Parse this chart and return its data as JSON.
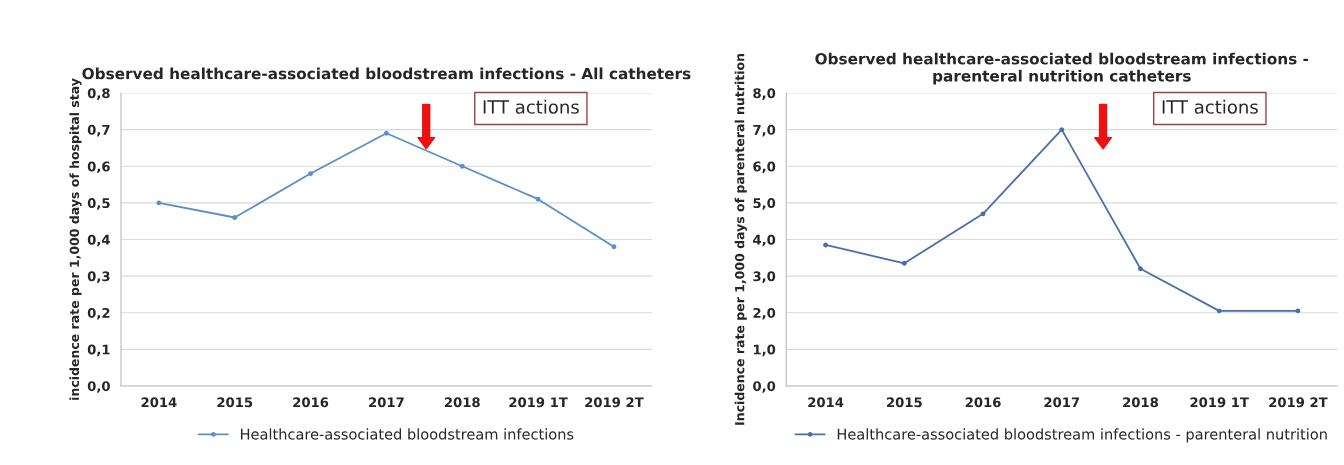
{
  "chart_data": [
    {
      "type": "line",
      "title": "Observed healthcare-associated bloodstream infections - All catheters",
      "ylabel": "incidence rate per 1,000 days of hospital stay",
      "categories": [
        "2014",
        "2015",
        "2016",
        "2017",
        "2018",
        "2019 1T",
        "2019 2T"
      ],
      "series": [
        {
          "name": "Healthcare-associated bloodstream infections",
          "color": "#5b8fc7",
          "values": [
            0.5,
            0.46,
            0.58,
            0.69,
            0.6,
            0.51,
            0.38
          ]
        }
      ],
      "ylim": [
        0,
        0.8
      ],
      "yticks": [
        {
          "value": 0,
          "label": "0,0"
        },
        {
          "value": 0.1,
          "label": "0,1"
        },
        {
          "value": 0.2,
          "label": "0,2"
        },
        {
          "value": 0.3,
          "label": "0,3"
        },
        {
          "value": 0.4,
          "label": "0,4"
        },
        {
          "value": 0.5,
          "label": "0,5"
        },
        {
          "value": 0.6,
          "label": "0,6"
        },
        {
          "value": 0.7,
          "label": "0,7"
        },
        {
          "value": 0.8,
          "label": "0,8"
        }
      ],
      "annotations": [
        "ITT actions"
      ],
      "grid": "y",
      "legend": "bottom",
      "marker": "circle",
      "line_style": "solid"
    },
    {
      "type": "line",
      "title": "Observed healthcare-associated bloodstream infections - parenteral nutrition catheters",
      "ylabel": "Incidence rate per 1,000 days of parenteral nutrition",
      "categories": [
        "2014",
        "2015",
        "2016",
        "2017",
        "2018",
        "2019 1T",
        "2019 2T"
      ],
      "series": [
        {
          "name": "Healthcare-associated bloodstream infections - parenteral nutrition",
          "color": "#4a6fae",
          "values": [
            3.85,
            3.35,
            4.7,
            7.0,
            3.2,
            2.05,
            2.05
          ]
        }
      ],
      "ylim": [
        0,
        8
      ],
      "yticks": [
        {
          "value": 0,
          "label": "0,0"
        },
        {
          "value": 1,
          "label": "1,0"
        },
        {
          "value": 2,
          "label": "2,0"
        },
        {
          "value": 3,
          "label": "3,0"
        },
        {
          "value": 4,
          "label": "4,0"
        },
        {
          "value": 5,
          "label": "5,0"
        },
        {
          "value": 6,
          "label": "6,0"
        },
        {
          "value": 7,
          "label": "7,0"
        },
        {
          "value": 8,
          "label": "8,0"
        }
      ],
      "annotations": [
        "ITT actions"
      ],
      "grid": "y",
      "legend": "bottom",
      "marker": "circle",
      "line_style": "solid"
    }
  ]
}
